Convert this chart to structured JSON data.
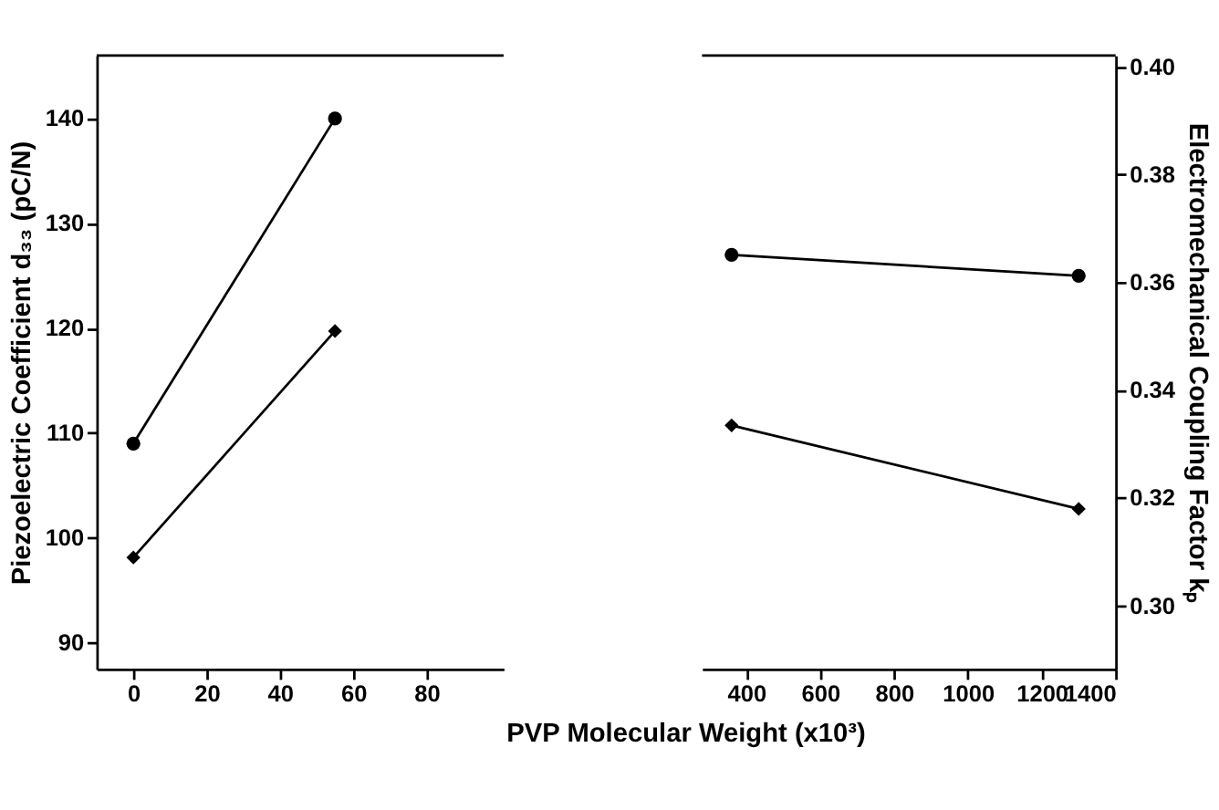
{
  "chart_data": [
    {
      "type": "line",
      "x": [
        0,
        55
      ],
      "xlim": [
        -10,
        101
      ],
      "xticks": [
        0,
        20,
        40,
        60,
        80
      ],
      "ylabel": "Piezoelectric Coefficient d₃₃ (pC/N)",
      "ylim": [
        87.5,
        146
      ],
      "yticks": [
        90,
        100,
        110,
        120,
        130,
        140
      ],
      "y2lim": [
        0.2883,
        0.4021
      ],
      "grid": false,
      "line_style": "solid",
      "series": [
        {
          "color": "#000000",
          "marker": "circle",
          "values": [
            109,
            140
          ]
        },
        {
          "color": "#000000",
          "marker": "diamond",
          "axis": "y2",
          "values": [
            0.309,
            0.351
          ]
        }
      ]
    },
    {
      "type": "line",
      "x": [
        360,
        1300
      ],
      "xlim": [
        280,
        1400
      ],
      "xticks": [
        400,
        600,
        800,
        1000,
        1200,
        1400
      ],
      "xlabel": "PVP Molecular Weight (x10³)",
      "y2label": "Electromechanical Coupling Factor kₚ",
      "ylim": [
        87.5,
        146
      ],
      "y2lim": [
        0.2883,
        0.4021
      ],
      "y2ticks": [
        {
          "value": 0.3,
          "label": "0.30"
        },
        {
          "value": 0.32,
          "label": "0.32"
        },
        {
          "value": 0.34,
          "label": "0.34"
        },
        {
          "value": 0.36,
          "label": "0.36"
        },
        {
          "value": 0.38,
          "label": "0.38"
        },
        {
          "value": 0.4,
          "label": "0.40"
        }
      ],
      "grid": false,
      "line_style": "solid",
      "series": [
        {
          "color": "#000000",
          "marker": "circle",
          "values": [
            127,
            125
          ]
        },
        {
          "color": "#000000",
          "marker": "diamond",
          "axis": "y2",
          "values": [
            0.3335,
            0.318
          ]
        }
      ]
    }
  ]
}
